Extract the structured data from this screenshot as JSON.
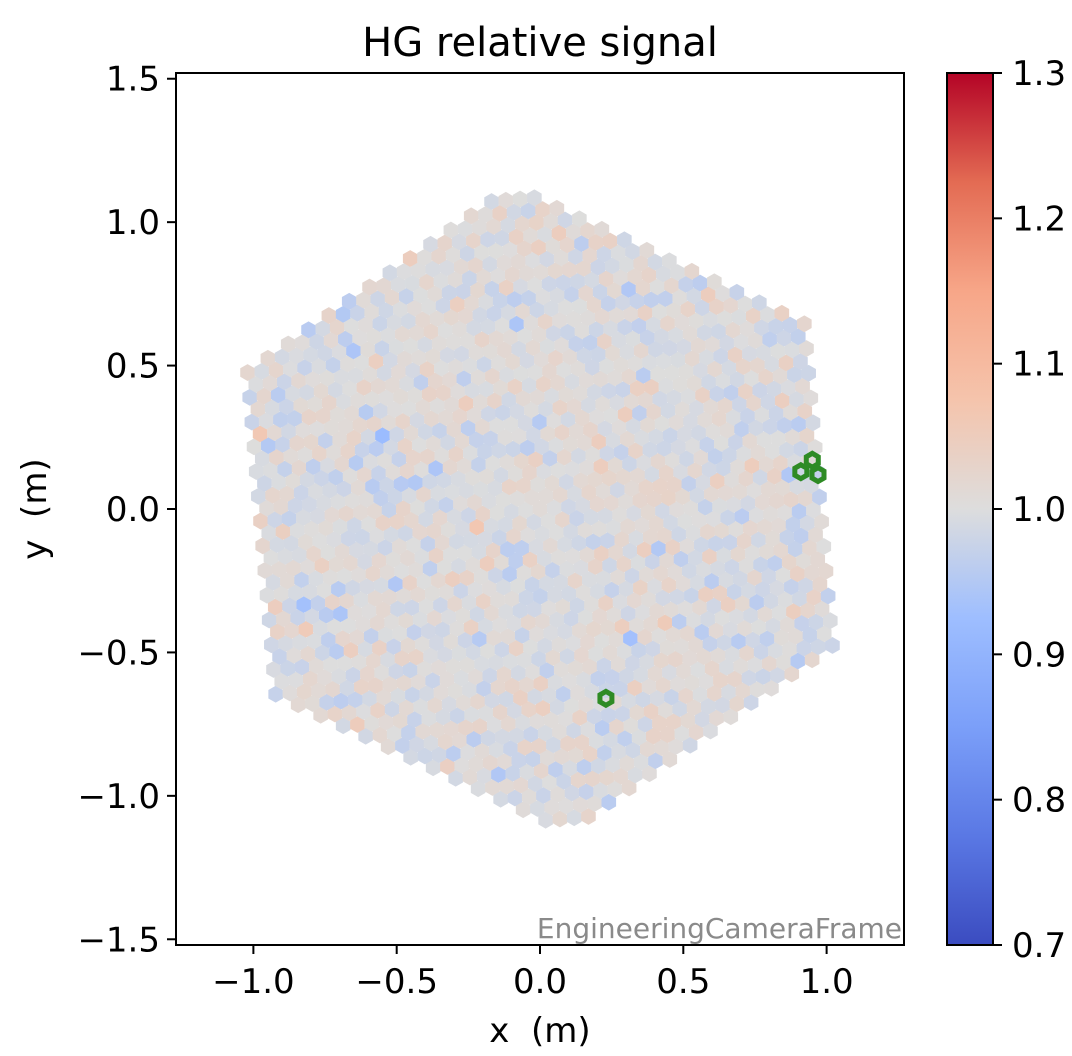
{
  "chart_data": {
    "type": "heatmap",
    "title": "HG relative signal",
    "xlabel": "x  (m)",
    "ylabel": "y  (m)",
    "xlim": [
      -1.27,
      1.27
    ],
    "ylim": [
      -1.52,
      1.52
    ],
    "xticks": [
      -1.0,
      -0.5,
      0.0,
      0.5,
      1.0
    ],
    "xtick_labels": [
      "−1.0",
      "−0.5",
      "0.0",
      "0.5",
      "1.0"
    ],
    "yticks": [
      1.5,
      1.0,
      0.5,
      0.0,
      -0.5,
      -1.0,
      -1.5
    ],
    "ytick_labels": [
      "1.5",
      "1.0",
      "0.5",
      "0.0",
      "−0.5",
      "−1.0",
      "−1.5"
    ],
    "annotation": "EngineeringCameraFrame",
    "colorbar": {
      "colormap": "coolwarm",
      "range": [
        0.7,
        1.3
      ],
      "ticks": [
        1.3,
        1.2,
        1.1,
        1.0,
        0.9,
        0.8,
        0.7
      ],
      "tick_labels": [
        "1.3",
        "1.2",
        "1.1",
        "1.0",
        "0.9",
        "0.8",
        "0.7"
      ]
    },
    "camera": {
      "shape": "hexagonal pixel camera",
      "pixel_pitch_m": 0.05,
      "camera_radius_m": 1.15,
      "typical_value": 1.0,
      "value_spread": 0.02
    },
    "highlighted_pixels": [
      {
        "x": 0.95,
        "y": 0.17
      },
      {
        "x": 0.91,
        "y": 0.13
      },
      {
        "x": 0.97,
        "y": 0.12
      },
      {
        "x": 0.23,
        "y": -0.66
      }
    ],
    "highlight_color": "#2e8b25"
  }
}
